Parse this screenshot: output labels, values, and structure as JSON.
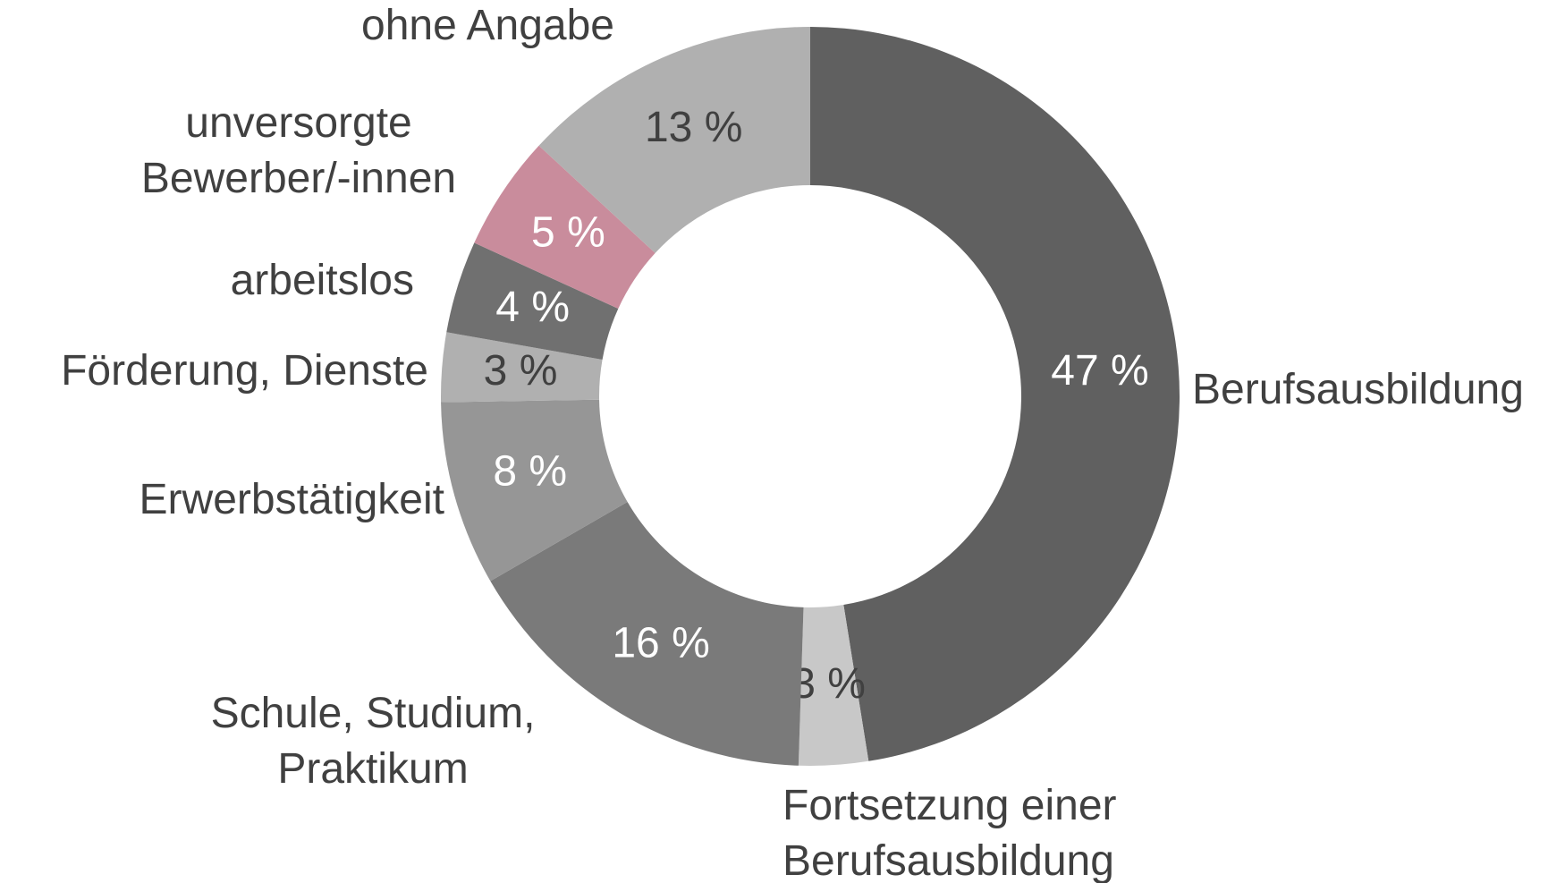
{
  "chart_data": {
    "type": "donut",
    "categories": [
      "Berufsausbildung",
      "Fortsetzung einer\nBerufsausbildung",
      "Schule, Studium,\nPraktikum",
      "Erwerbstätigkeit",
      "Förderung, Dienste",
      "arbeitslos",
      "unversorgte\nBewerber/-innen",
      "ohne Angabe"
    ],
    "values": [
      47,
      3,
      16,
      8,
      3,
      4,
      5,
      13
    ],
    "value_labels": [
      "47 %",
      "3 %",
      "16 %",
      "8 %",
      "3 %",
      "4 %",
      "5 %",
      "13 %"
    ],
    "colors": [
      "#606060",
      "#c8c8c8",
      "#7a7a7a",
      "#969696",
      "#b0b0b0",
      "#707070",
      "#c98c9c",
      "#b0b0b0"
    ]
  }
}
